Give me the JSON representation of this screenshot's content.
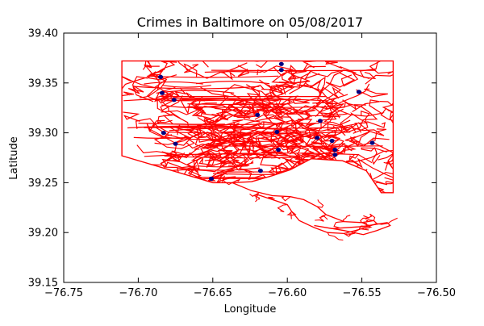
{
  "chart_data": {
    "type": "scatter",
    "title": "Crimes in Baltimore on 05/08/2017",
    "xlabel": "Longitude",
    "ylabel": "Latitude",
    "xlim": [
      -76.75,
      -76.5
    ],
    "ylim": [
      39.15,
      39.4
    ],
    "xticks": [
      -76.75,
      -76.7,
      -76.65,
      -76.6,
      -76.55,
      -76.5
    ],
    "xtick_labels": [
      "−76.75",
      "−76.70",
      "−76.65",
      "−76.60",
      "−76.55",
      "−76.50"
    ],
    "yticks": [
      39.15,
      39.2,
      39.25,
      39.3,
      39.35,
      39.4
    ],
    "ytick_labels": [
      "39.15",
      "39.20",
      "39.25",
      "39.30",
      "39.35",
      "39.40"
    ],
    "grid": false,
    "boundary_color": "#ff0000",
    "point_color": "#000080",
    "city_boundary": [
      [
        -76.711,
        39.372
      ],
      [
        -76.529,
        39.372
      ],
      [
        -76.529,
        39.24
      ],
      [
        -76.537,
        39.24
      ],
      [
        -76.547,
        39.262
      ],
      [
        -76.563,
        39.272
      ],
      [
        -76.584,
        39.274
      ],
      [
        -76.598,
        39.263
      ],
      [
        -76.61,
        39.257
      ],
      [
        -76.624,
        39.251
      ],
      [
        -76.637,
        39.25
      ],
      [
        -76.65,
        39.25
      ],
      [
        -76.711,
        39.277
      ]
    ],
    "harbor_shoreline": [
      [
        -76.637,
        39.25
      ],
      [
        -76.624,
        39.242
      ],
      [
        -76.61,
        39.237
      ],
      [
        -76.598,
        39.236
      ],
      [
        -76.589,
        39.233
      ],
      [
        -76.58,
        39.226
      ],
      [
        -76.574,
        39.218
      ],
      [
        -76.562,
        39.211
      ],
      [
        -76.55,
        39.21
      ],
      [
        -76.542,
        39.212
      ],
      [
        -76.54,
        39.209
      ],
      [
        -76.552,
        39.203
      ],
      [
        -76.562,
        39.199
      ],
      [
        -76.573,
        39.2
      ],
      [
        -76.582,
        39.205
      ],
      [
        -76.592,
        39.212
      ],
      [
        -76.597,
        39.221
      ],
      [
        -76.6,
        39.228
      ],
      [
        -76.61,
        39.233
      ],
      [
        -76.62,
        39.238
      ]
    ],
    "south_peninsula": [
      [
        -76.582,
        39.207
      ],
      [
        -76.562,
        39.202
      ],
      [
        -76.549,
        39.198
      ],
      [
        -76.54,
        39.202
      ],
      [
        -76.531,
        39.207
      ],
      [
        -76.533,
        39.21
      ],
      [
        -76.55,
        39.206
      ],
      [
        -76.57,
        39.204
      ]
    ],
    "crime_points": [
      {
        "lon": -76.685,
        "lat": 39.356
      },
      {
        "lon": -76.684,
        "lat": 39.34
      },
      {
        "lon": -76.676,
        "lat": 39.333
      },
      {
        "lon": -76.683,
        "lat": 39.3
      },
      {
        "lon": -76.675,
        "lat": 39.289
      },
      {
        "lon": -76.604,
        "lat": 39.369
      },
      {
        "lon": -76.604,
        "lat": 39.363
      },
      {
        "lon": -76.552,
        "lat": 39.341
      },
      {
        "lon": -76.58,
        "lat": 39.295
      },
      {
        "lon": -76.578,
        "lat": 39.312
      },
      {
        "lon": -76.57,
        "lat": 39.292
      },
      {
        "lon": -76.568,
        "lat": 39.283
      },
      {
        "lon": -76.568,
        "lat": 39.278
      },
      {
        "lon": -76.543,
        "lat": 39.29
      },
      {
        "lon": -76.606,
        "lat": 39.283
      },
      {
        "lon": -76.618,
        "lat": 39.262
      },
      {
        "lon": -76.651,
        "lat": 39.254
      },
      {
        "lon": -76.62,
        "lat": 39.318
      },
      {
        "lon": -76.607,
        "lat": 39.301
      }
    ]
  }
}
